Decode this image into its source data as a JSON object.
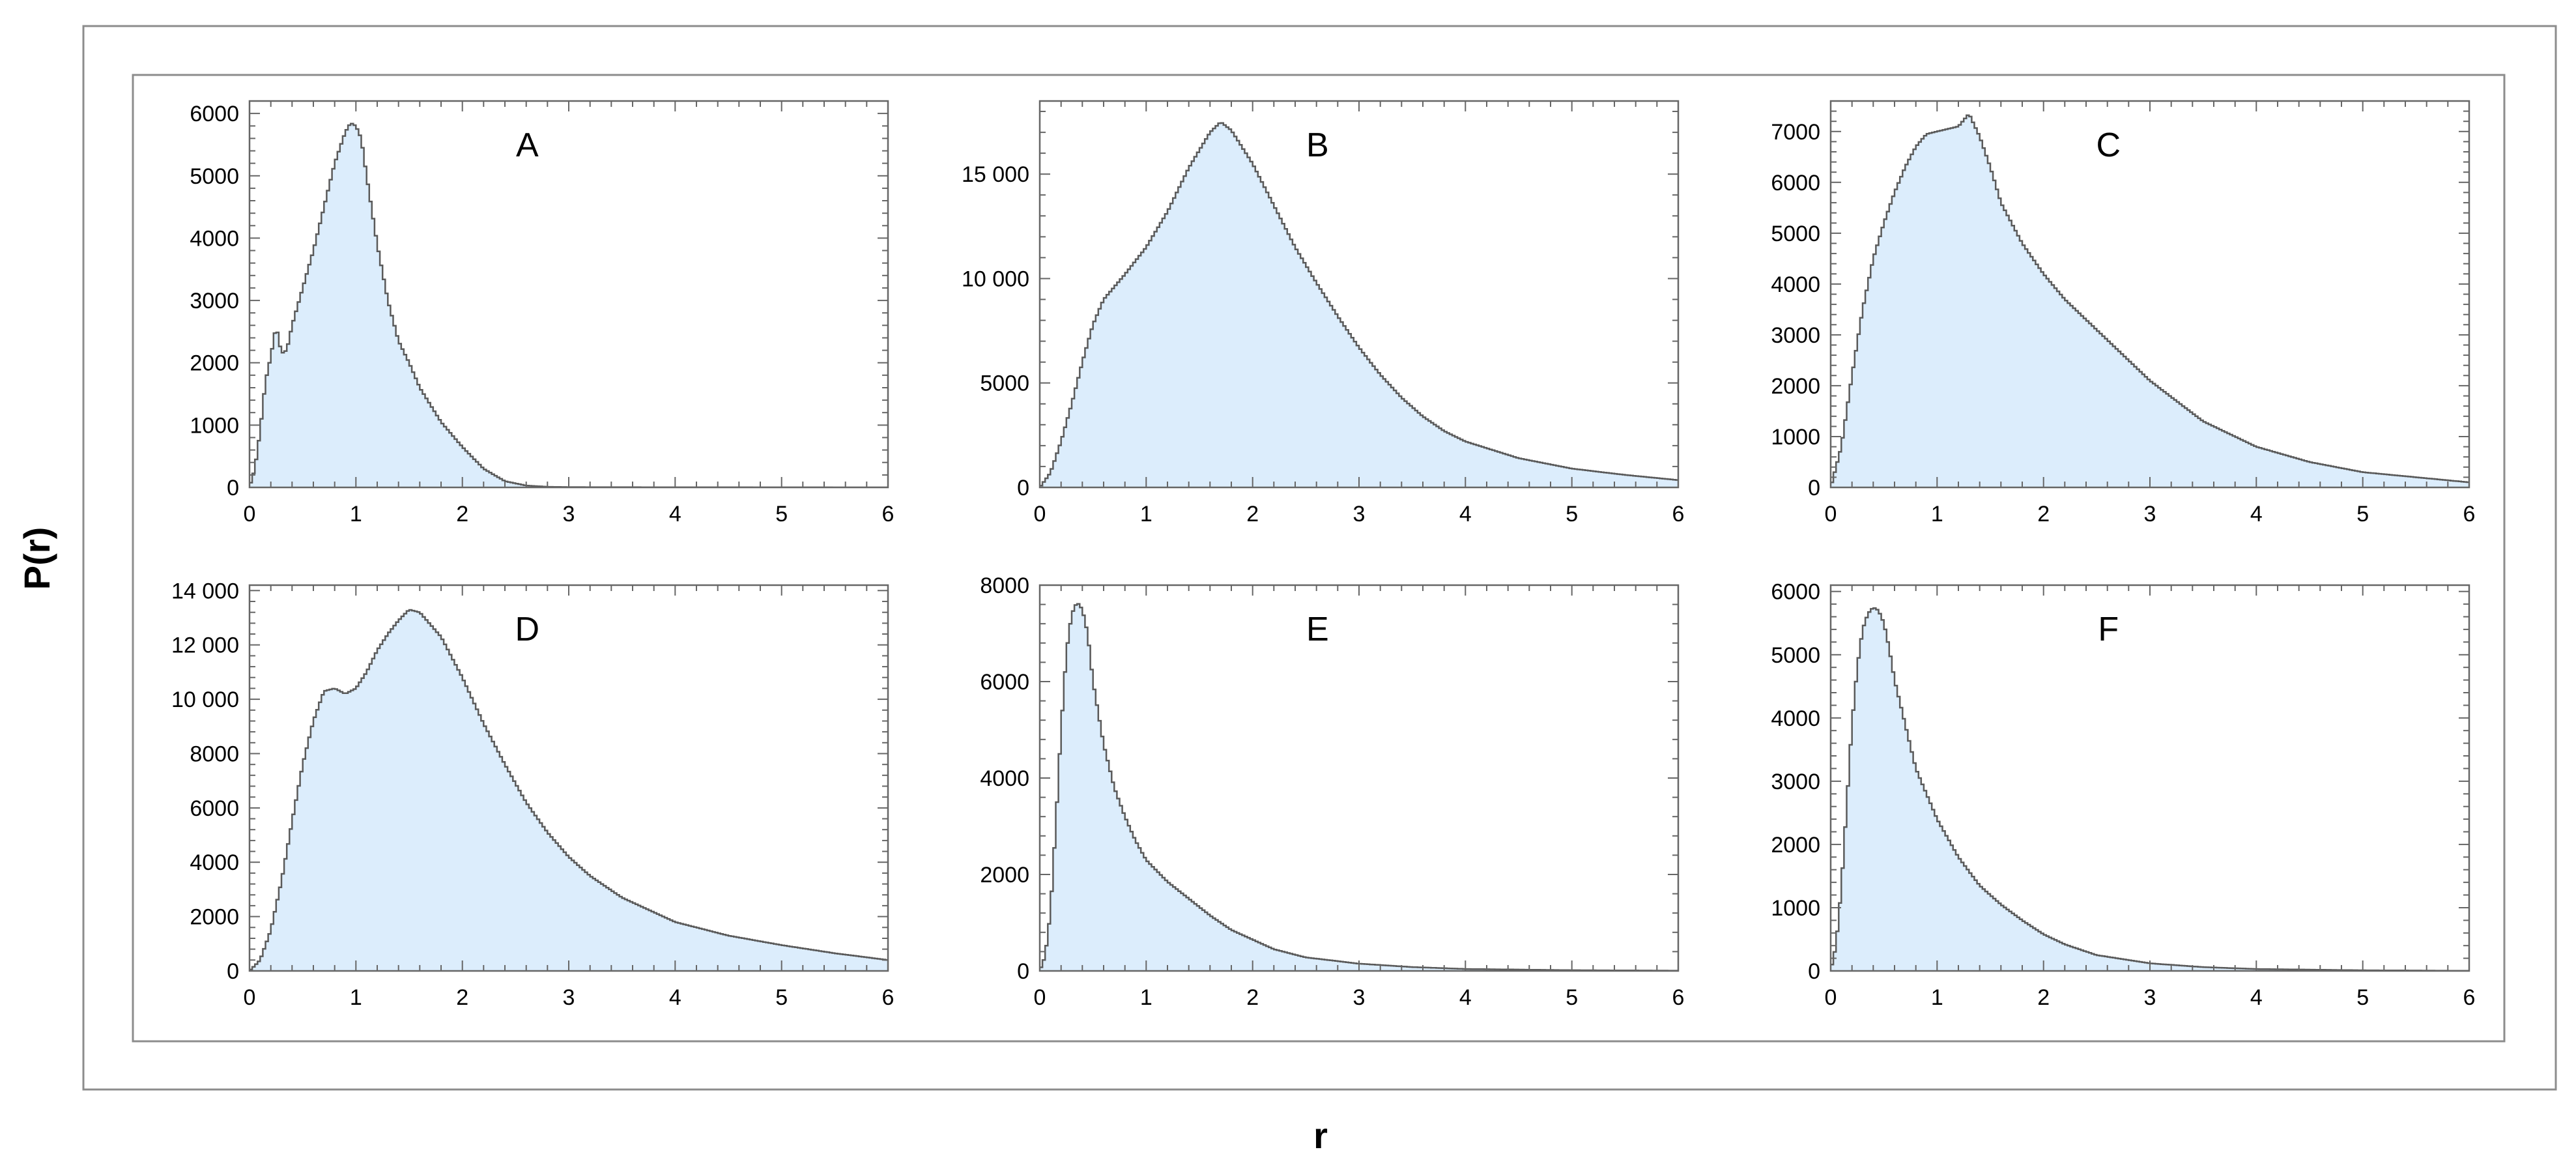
{
  "figure": {
    "xlabel": "r",
    "ylabel": "P(r)"
  },
  "colors": {
    "fill": "#dcedfc",
    "line": "#5a5a5a",
    "frame": "#666666"
  },
  "chart_data": [
    {
      "type": "area",
      "label": "A",
      "xlim": [
        0,
        6
      ],
      "ylim": [
        0,
        6200
      ],
      "xticks": [
        "0",
        "1",
        "2",
        "3",
        "4",
        "5",
        "6"
      ],
      "yticks": [
        {
          "value": 0,
          "text": "0"
        },
        {
          "value": 1000,
          "text": "1000"
        },
        {
          "value": 2000,
          "text": "2000"
        },
        {
          "value": 3000,
          "text": "3000"
        },
        {
          "value": 4000,
          "text": "4000"
        },
        {
          "value": 5000,
          "text": "5000"
        },
        {
          "value": 6000,
          "text": "6000"
        }
      ],
      "x": [
        0,
        0.05,
        0.1,
        0.15,
        0.2,
        0.25,
        0.3,
        0.35,
        0.4,
        0.5,
        0.6,
        0.7,
        0.8,
        0.9,
        0.95,
        1.0,
        1.05,
        1.1,
        1.2,
        1.3,
        1.4,
        1.5,
        1.6,
        1.8,
        2.0,
        2.2,
        2.4,
        2.6,
        2.8,
        3.0,
        4.0,
        5.0,
        6.0
      ],
      "y": [
        0,
        300,
        900,
        1700,
        2100,
        2600,
        2150,
        2200,
        2600,
        3200,
        3800,
        4500,
        5200,
        5700,
        5850,
        5800,
        5600,
        5000,
        3900,
        3000,
        2350,
        2000,
        1600,
        1050,
        650,
        300,
        100,
        30,
        10,
        5,
        3,
        1,
        0
      ]
    },
    {
      "type": "area",
      "label": "B",
      "xlim": [
        0,
        6
      ],
      "ylim": [
        0,
        18500
      ],
      "xticks": [
        "0",
        "1",
        "2",
        "3",
        "4",
        "5",
        "6"
      ],
      "yticks": [
        {
          "value": 0,
          "text": "0"
        },
        {
          "value": 5000,
          "text": "5000"
        },
        {
          "value": 10000,
          "text": "10 000"
        },
        {
          "value": 15000,
          "text": "15 000"
        }
      ],
      "x": [
        0,
        0.1,
        0.2,
        0.3,
        0.4,
        0.5,
        0.6,
        0.7,
        0.8,
        1.0,
        1.2,
        1.4,
        1.6,
        1.7,
        1.8,
        2.0,
        2.2,
        2.4,
        2.6,
        2.8,
        3.0,
        3.2,
        3.4,
        3.6,
        3.8,
        4.0,
        4.5,
        5.0,
        5.5,
        6.0
      ],
      "y": [
        0,
        700,
        2200,
        4000,
        6000,
        7800,
        9000,
        9600,
        10200,
        11500,
        13200,
        15300,
        17000,
        17500,
        17100,
        15500,
        13500,
        11500,
        9800,
        8200,
        6700,
        5400,
        4300,
        3400,
        2700,
        2200,
        1400,
        900,
        600,
        350
      ]
    },
    {
      "type": "area",
      "label": "C",
      "xlim": [
        0,
        6
      ],
      "ylim": [
        0,
        7600
      ],
      "xticks": [
        "0",
        "1",
        "2",
        "3",
        "4",
        "5",
        "6"
      ],
      "yticks": [
        {
          "value": 0,
          "text": "0"
        },
        {
          "value": 1000,
          "text": "1000"
        },
        {
          "value": 2000,
          "text": "2000"
        },
        {
          "value": 3000,
          "text": "3000"
        },
        {
          "value": 4000,
          "text": "4000"
        },
        {
          "value": 5000,
          "text": "5000"
        },
        {
          "value": 6000,
          "text": "6000"
        },
        {
          "value": 7000,
          "text": "7000"
        }
      ],
      "x": [
        0,
        0.1,
        0.2,
        0.3,
        0.4,
        0.5,
        0.6,
        0.7,
        0.8,
        0.9,
        1.0,
        1.1,
        1.2,
        1.3,
        1.4,
        1.5,
        1.6,
        1.8,
        2.0,
        2.2,
        2.4,
        2.6,
        2.8,
        3.0,
        3.5,
        4.0,
        4.5,
        5.0,
        5.5,
        6.0
      ],
      "y": [
        0,
        800,
        2200,
        3500,
        4500,
        5200,
        5800,
        6300,
        6700,
        6950,
        7000,
        7050,
        7100,
        7350,
        6900,
        6300,
        5600,
        4800,
        4200,
        3700,
        3300,
        2900,
        2500,
        2100,
        1300,
        800,
        500,
        300,
        200,
        100
      ]
    },
    {
      "type": "area",
      "label": "D",
      "xlim": [
        0,
        6
      ],
      "ylim": [
        0,
        14200
      ],
      "xticks": [
        "0",
        "1",
        "2",
        "3",
        "4",
        "5",
        "6"
      ],
      "yticks": [
        {
          "value": 0,
          "text": "0"
        },
        {
          "value": 2000,
          "text": "2000"
        },
        {
          "value": 4000,
          "text": "4000"
        },
        {
          "value": 6000,
          "text": "6000"
        },
        {
          "value": 8000,
          "text": "8000"
        },
        {
          "value": 10000,
          "text": "10 000"
        },
        {
          "value": 12000,
          "text": "12 000"
        },
        {
          "value": 14000,
          "text": "14 000"
        }
      ],
      "x": [
        0,
        0.1,
        0.2,
        0.3,
        0.4,
        0.5,
        0.6,
        0.7,
        0.8,
        0.9,
        1.0,
        1.1,
        1.2,
        1.3,
        1.4,
        1.5,
        1.6,
        1.8,
        2.0,
        2.2,
        2.4,
        2.6,
        2.8,
        3.0,
        3.2,
        3.5,
        4.0,
        4.5,
        5.0,
        5.5,
        6.0
      ],
      "y": [
        0,
        400,
        1500,
        3300,
        5500,
        7600,
        9200,
        10300,
        10400,
        10200,
        10400,
        11000,
        11800,
        12400,
        12900,
        13300,
        13200,
        12300,
        10800,
        9100,
        7600,
        6200,
        5100,
        4200,
        3500,
        2700,
        1800,
        1300,
        950,
        650,
        400
      ]
    },
    {
      "type": "area",
      "label": "E",
      "xlim": [
        0,
        6
      ],
      "ylim": [
        0,
        8000
      ],
      "xticks": [
        "0",
        "1",
        "2",
        "3",
        "4",
        "5",
        "6"
      ],
      "yticks": [
        {
          "value": 0,
          "text": "0"
        },
        {
          "value": 2000,
          "text": "2000"
        },
        {
          "value": 4000,
          "text": "4000"
        },
        {
          "value": 6000,
          "text": "6000"
        },
        {
          "value": 8000,
          "text": "8000"
        }
      ],
      "x": [
        0,
        0.05,
        0.1,
        0.15,
        0.2,
        0.25,
        0.3,
        0.35,
        0.4,
        0.45,
        0.5,
        0.6,
        0.7,
        0.8,
        0.9,
        1.0,
        1.2,
        1.4,
        1.6,
        1.8,
        2.0,
        2.2,
        2.5,
        3.0,
        3.5,
        4.0,
        5.0,
        6.0
      ],
      "y": [
        0,
        300,
        1200,
        3000,
        5000,
        6600,
        7400,
        7650,
        7500,
        7000,
        6000,
        4700,
        3800,
        3200,
        2700,
        2300,
        1850,
        1500,
        1150,
        850,
        650,
        450,
        280,
        150,
        80,
        40,
        15,
        5
      ]
    },
    {
      "type": "area",
      "label": "F",
      "xlim": [
        0,
        6
      ],
      "ylim": [
        0,
        6100
      ],
      "xticks": [
        "0",
        "1",
        "2",
        "3",
        "4",
        "5",
        "6"
      ],
      "yticks": [
        {
          "value": 0,
          "text": "0"
        },
        {
          "value": 1000,
          "text": "1000"
        },
        {
          "value": 2000,
          "text": "2000"
        },
        {
          "value": 3000,
          "text": "3000"
        },
        {
          "value": 4000,
          "text": "4000"
        },
        {
          "value": 5000,
          "text": "5000"
        },
        {
          "value": 6000,
          "text": "6000"
        }
      ],
      "x": [
        0,
        0.05,
        0.1,
        0.15,
        0.2,
        0.25,
        0.3,
        0.35,
        0.4,
        0.45,
        0.5,
        0.55,
        0.6,
        0.7,
        0.8,
        0.9,
        1.0,
        1.2,
        1.4,
        1.6,
        1.8,
        2.0,
        2.2,
        2.5,
        3.0,
        3.5,
        4.0,
        5.0,
        6.0
      ],
      "y": [
        0,
        400,
        1300,
        2600,
        3900,
        4800,
        5400,
        5650,
        5750,
        5700,
        5500,
        5100,
        4600,
        3900,
        3200,
        2800,
        2400,
        1800,
        1350,
        1050,
        800,
        580,
        420,
        250,
        120,
        60,
        30,
        10,
        2
      ]
    }
  ]
}
